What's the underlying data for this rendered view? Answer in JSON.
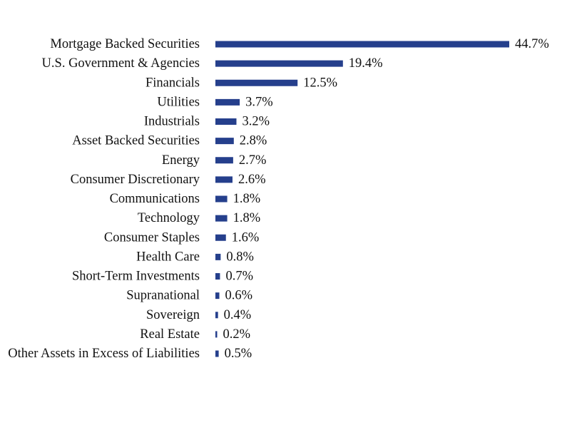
{
  "chart_data": {
    "type": "bar",
    "orientation": "horizontal",
    "categories": [
      "Mortgage Backed Securities",
      "U.S. Government & Agencies",
      "Financials",
      "Utilities",
      "Industrials",
      "Asset Backed Securities",
      "Energy",
      "Consumer Discretionary",
      "Communications",
      "Technology",
      "Consumer Staples",
      "Health Care",
      "Short-Term Investments",
      "Supranational",
      "Sovereign",
      "Real Estate",
      "Other Assets in Excess of Liabilities"
    ],
    "values": [
      44.7,
      19.4,
      12.5,
      3.7,
      3.2,
      2.8,
      2.7,
      2.6,
      1.8,
      1.8,
      1.6,
      0.8,
      0.7,
      0.6,
      0.4,
      0.2,
      0.5
    ],
    "value_labels": [
      "44.7%",
      "19.4%",
      "12.5%",
      "3.7%",
      "3.2%",
      "2.8%",
      "2.7%",
      "2.6%",
      "1.8%",
      "1.8%",
      "1.6%",
      "0.8%",
      "0.7%",
      "0.6%",
      "0.4%",
      "0.2%",
      "0.5%"
    ],
    "unit": "%",
    "bar_color": "#253f8c",
    "grid": false,
    "legend": "none"
  }
}
